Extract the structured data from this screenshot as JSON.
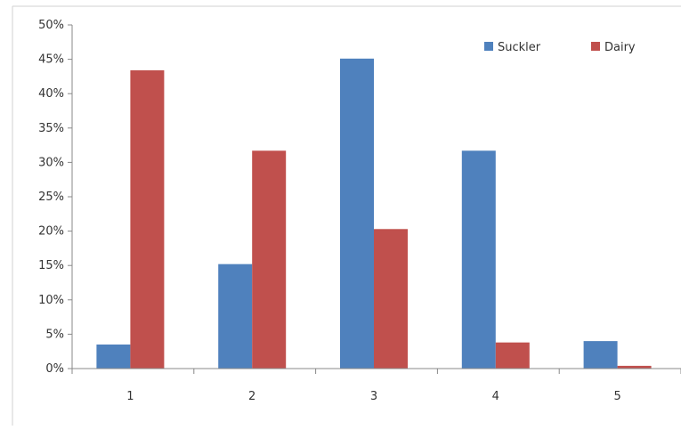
{
  "chart_data": {
    "type": "bar",
    "categories": [
      "1",
      "2",
      "3",
      "4",
      "5"
    ],
    "series": [
      {
        "name": "Suckler",
        "values": [
          3.5,
          15.2,
          45.1,
          31.7,
          4.0
        ],
        "color": "#4f81bd"
      },
      {
        "name": "Dairy",
        "values": [
          43.4,
          31.7,
          20.3,
          3.8,
          0.4
        ],
        "color": "#c0504d"
      }
    ],
    "ylim": [
      0,
      50
    ],
    "yticks": [
      "0%",
      "5%",
      "10%",
      "15%",
      "20%",
      "25%",
      "30%",
      "35%",
      "40%",
      "45%",
      "50%"
    ],
    "y_unit": "%",
    "legend_position": "top-right",
    "grid": false
  }
}
